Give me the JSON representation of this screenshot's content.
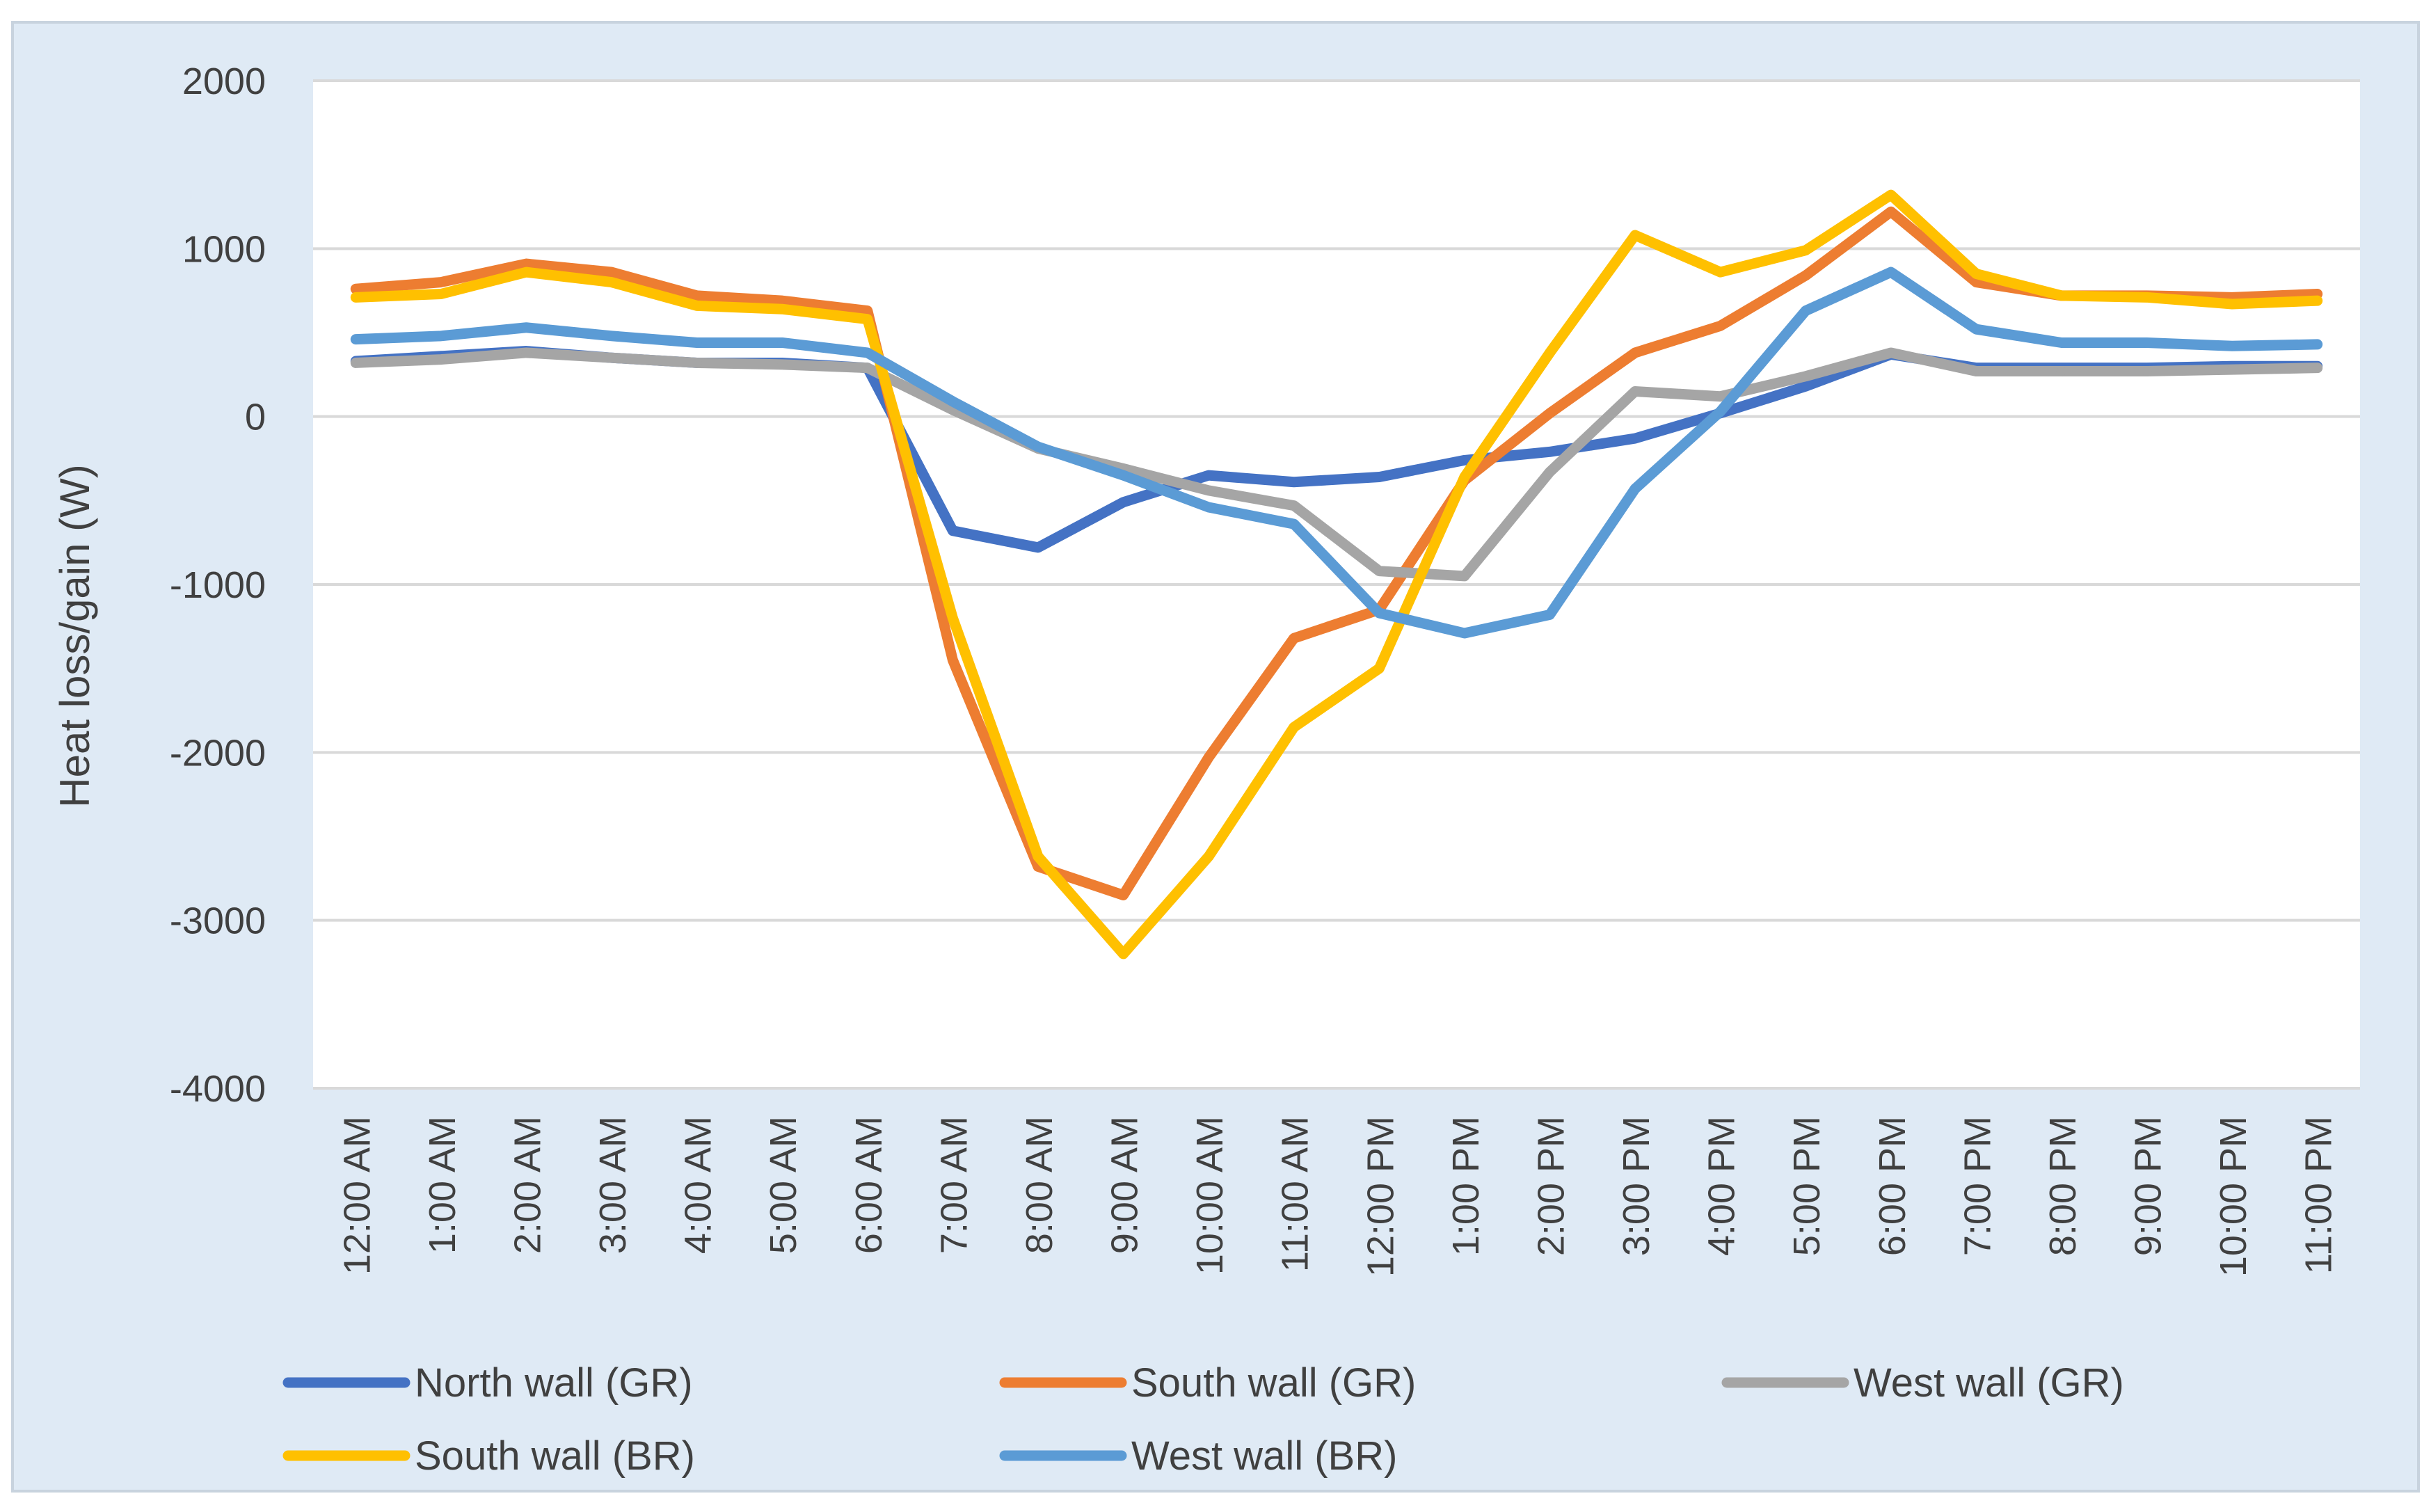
{
  "chart_data": {
    "type": "line",
    "title": "",
    "xlabel": "",
    "ylabel": "Heat loss/gain (W)",
    "ylim": [
      -4000,
      2000
    ],
    "yticks": [
      2000,
      1000,
      0,
      -1000,
      -2000,
      -3000,
      -4000
    ],
    "grid": "horizontal",
    "legend_position": "bottom",
    "categories": [
      "12:00 AM",
      "1:00 AM",
      "2:00 AM",
      "3:00 AM",
      "4:00 AM",
      "5:00 AM",
      "6:00 AM",
      "7:00 AM",
      "8:00 AM",
      "9:00 AM",
      "10:00 AM",
      "11:00 AM",
      "12:00 PM",
      "1:00 PM",
      "2:00 PM",
      "3:00 PM",
      "4:00 PM",
      "5:00 PM",
      "6:00 PM",
      "7:00 PM",
      "8:00 PM",
      "9:00 PM",
      "10:00 PM",
      "11:00 PM"
    ],
    "series": [
      {
        "name": "North wall (GR)",
        "color": "#4472c4",
        "values": [
          330,
          360,
          390,
          350,
          320,
          320,
          290,
          -680,
          -780,
          -510,
          -350,
          -390,
          -360,
          -260,
          -210,
          -130,
          20,
          180,
          370,
          290,
          290,
          290,
          300,
          300
        ]
      },
      {
        "name": "South wall (GR)",
        "color": "#ed7d31",
        "values": [
          760,
          800,
          910,
          860,
          720,
          690,
          630,
          -1450,
          -2680,
          -2850,
          -2030,
          -1320,
          -1150,
          -380,
          20,
          380,
          540,
          840,
          1220,
          800,
          720,
          720,
          710,
          730
        ]
      },
      {
        "name": "West wall (GR)",
        "color": "#a5a5a5",
        "values": [
          320,
          340,
          380,
          350,
          320,
          310,
          290,
          40,
          -190,
          -310,
          -440,
          -530,
          -920,
          -950,
          -330,
          150,
          120,
          240,
          380,
          270,
          270,
          270,
          280,
          290
        ]
      },
      {
        "name": "South wall (BR)",
        "color": "#ffc000",
        "values": [
          710,
          730,
          860,
          800,
          660,
          640,
          580,
          -1200,
          -2620,
          -3200,
          -2620,
          -1850,
          -1500,
          -360,
          380,
          1080,
          860,
          990,
          1320,
          850,
          720,
          710,
          670,
          690
        ]
      },
      {
        "name": "West wall (BR)",
        "color": "#5b9bd5",
        "values": [
          460,
          480,
          530,
          480,
          440,
          440,
          380,
          90,
          -180,
          -350,
          -540,
          -640,
          -1170,
          -1290,
          -1180,
          -430,
          30,
          630,
          860,
          520,
          440,
          440,
          420,
          430
        ]
      }
    ]
  }
}
